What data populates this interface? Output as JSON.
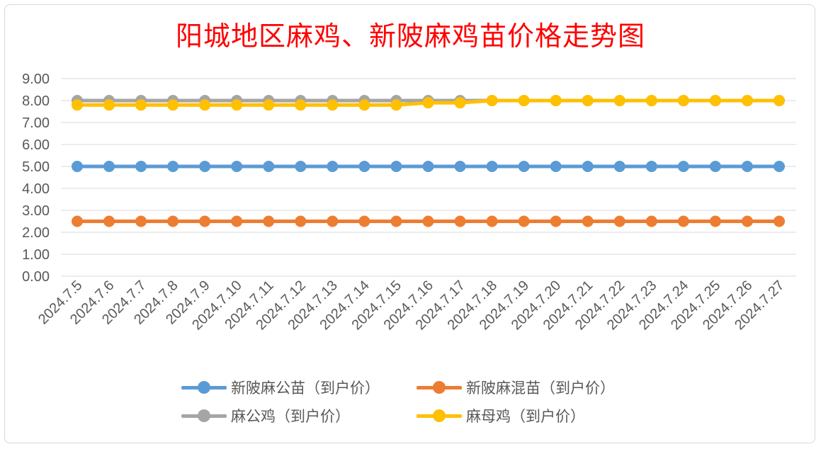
{
  "chart_data": {
    "type": "line",
    "title": "阳城地区麻鸡、新陂麻鸡苗价格走势图",
    "xlabel": "",
    "ylabel": "",
    "ylim": [
      0,
      9
    ],
    "yticks": [
      "0.00",
      "1.00",
      "2.00",
      "3.00",
      "4.00",
      "5.00",
      "6.00",
      "7.00",
      "8.00",
      "9.00"
    ],
    "grid": true,
    "legend_position": "bottom",
    "categories": [
      "2024.7.5",
      "2024.7.6",
      "2024.7.7",
      "2024.7.8",
      "2024.7.9",
      "2024.7.10",
      "2024.7.11",
      "2024.7.12",
      "2024.7.13",
      "2024.7.14",
      "2024.7.15",
      "2024.7.16",
      "2024.7.17",
      "2024.7.18",
      "2024.7.19",
      "2024.7.20",
      "2024.7.21",
      "2024.7.22",
      "2024.7.23",
      "2024.7.24",
      "2024.7.25",
      "2024.7.26",
      "2024.7.27"
    ],
    "series": [
      {
        "name": "新陂麻公苗（到户价）",
        "color": "#5b9bd5",
        "values": [
          5,
          5,
          5,
          5,
          5,
          5,
          5,
          5,
          5,
          5,
          5,
          5,
          5,
          5,
          5,
          5,
          5,
          5,
          5,
          5,
          5,
          5,
          5
        ]
      },
      {
        "name": "新陂麻混苗（到户价）",
        "color": "#ed7d31",
        "values": [
          2.5,
          2.5,
          2.5,
          2.5,
          2.5,
          2.5,
          2.5,
          2.5,
          2.5,
          2.5,
          2.5,
          2.5,
          2.5,
          2.5,
          2.5,
          2.5,
          2.5,
          2.5,
          2.5,
          2.5,
          2.5,
          2.5,
          2.5
        ]
      },
      {
        "name": "麻公鸡（到户价）",
        "color": "#a5a5a5",
        "values": [
          8,
          8,
          8,
          8,
          8,
          8,
          8,
          8,
          8,
          8,
          8,
          8,
          8,
          8,
          8,
          8,
          8,
          8,
          8,
          8,
          8,
          8,
          8
        ]
      },
      {
        "name": "麻母鸡（到户价）",
        "color": "#ffc000",
        "values": [
          7.8,
          7.8,
          7.8,
          7.8,
          7.8,
          7.8,
          7.8,
          7.8,
          7.8,
          7.8,
          7.8,
          7.9,
          7.9,
          8,
          8,
          8,
          8,
          8,
          8,
          8,
          8,
          8,
          8
        ]
      }
    ]
  }
}
